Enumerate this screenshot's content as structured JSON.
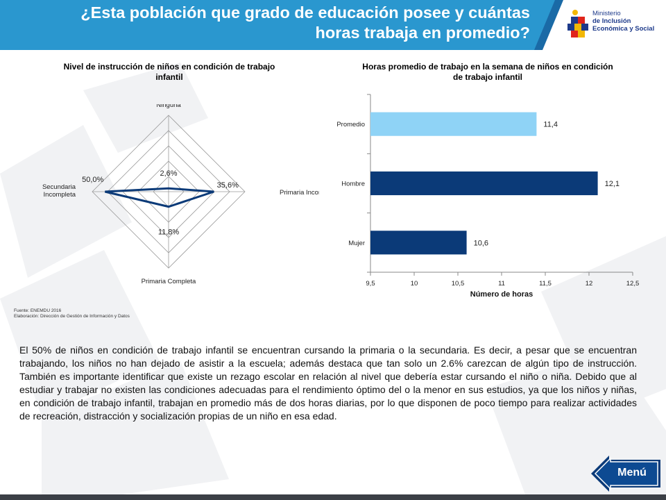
{
  "header": {
    "title_line1": "¿Esta población que grado de educación posee y cuántas",
    "title_line2": "horas trabaja en promedio?"
  },
  "logo": {
    "line1": "Ministerio",
    "line2": "de Inclusión",
    "line3": "Económica y Social"
  },
  "colors": {
    "header_blue": "#2a97cf",
    "accent_dark": "#0b3a78",
    "bar_light": "#8fd3f6",
    "bar_dark": "#0b3a78"
  },
  "chart_data": [
    {
      "type": "radar",
      "title": "Nivel de instrucción de niños en condición de trabajo infantil",
      "categories": [
        "Ninguna",
        "Primaria Incompleta",
        "Primaria Completa",
        "Secundaria Incompleta"
      ],
      "category_lines": [
        [
          "Ninguna"
        ],
        [
          "Primaria Incompleta"
        ],
        [
          "Primaria Completa"
        ],
        [
          "Secundaria",
          "Incompleta"
        ]
      ],
      "values": [
        2.6,
        35.6,
        11.8,
        50.0
      ],
      "value_labels": [
        "2,6%",
        "35,6%",
        "11,8%",
        "50,0%"
      ],
      "max": 60,
      "rings": 5
    },
    {
      "type": "bar",
      "orientation": "horizontal",
      "title": "Horas promedio de trabajo en la semana de niños en condición de trabajo infantil",
      "categories": [
        "Promedio",
        "Hombre",
        "Mujer"
      ],
      "values": [
        11.4,
        12.1,
        10.6
      ],
      "value_labels": [
        "11,4",
        "12,1",
        "10,6"
      ],
      "colors": [
        "#8fd3f6",
        "#0b3a78",
        "#0b3a78"
      ],
      "xlabel": "Número de horas",
      "xlim": [
        9.5,
        12.5
      ],
      "xticks": [
        9.5,
        10,
        10.5,
        11,
        11.5,
        12,
        12.5
      ],
      "xtick_labels": [
        "9,5",
        "10",
        "10,5",
        "11",
        "11,5",
        "12",
        "12,5"
      ]
    }
  ],
  "source": {
    "line1": "Fuente: ENEMDU 2016",
    "line2": "Elaboración: Dirección de Gestión de Información y Datos"
  },
  "paragraph": "El 50% de niños en condición de trabajo infantil se encuentran cursando la primaria o la secundaria. Es decir, a pesar que se encuentran trabajando, los niños no han dejado de asistir a la escuela; además destaca que tan solo un 2.6% carezcan de algún tipo de instrucción. También es importante identificar que existe un rezago escolar en relación al nivel que debería estar cursando el niño o niña. Debido que al estudiar y trabajar no existen las condiciones adecuadas para el rendimiento óptimo del o la menor en sus estudios, ya que los niños y niñas, en condición de trabajo infantil, trabajan en promedio más de dos horas diarias, por lo que disponen de poco tiempo para realizar actividades de recreación, distracción y socialización propias de un niño en esa edad.",
  "menu": {
    "label": "Menú"
  }
}
